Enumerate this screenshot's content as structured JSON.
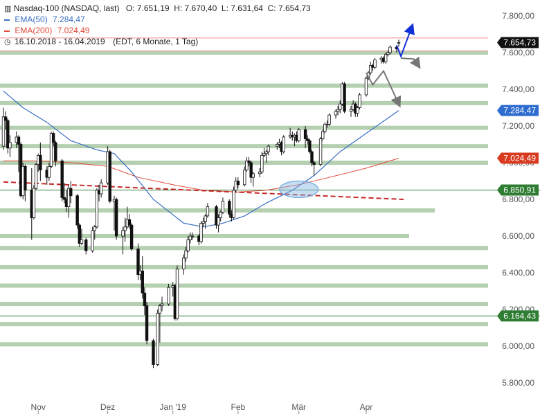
{
  "header": {
    "title": "Nasdaq-100 (NASDAQ, last)",
    "ohlc": "O: 7.651,19  H: 7.670,40  L: 7.631,64  C: 7.654,73",
    "ema50_label": "EMA(50)",
    "ema50_value": "7.284,47",
    "ema200_label": "EMA(200)",
    "ema200_value": "7.024,49",
    "range": "16.10.2018 - 16.04.2019",
    "range_info": "(EDT, 6 Monate, 1 Tag)"
  },
  "colors": {
    "ema50": "#3a6fc4",
    "ema200": "#e24b3b",
    "zone": "#b5cfb1",
    "price_badge": "#111111",
    "ema50_badge": "#2e6dcf",
    "ema200_badge": "#d93a1f",
    "level_badge": "#2f7d33",
    "dashed_trend": "#c62828",
    "blue_arrow": "#1230d8",
    "gray_arrow": "#777777",
    "ellipse": "#6aa6dd"
  },
  "chart_data": {
    "type": "candlestick",
    "title": "Nasdaq-100 (NASDAQ, last)",
    "xlabel": "",
    "ylabel": "",
    "ylim": [
      5750,
      7840
    ],
    "yticks": [
      "5.800,00",
      "6.000,00",
      "6.200,00",
      "6.400,00",
      "6.600,00",
      "6.800,00",
      "7.000,00",
      "7.200,00",
      "7.400,00",
      "7.600,00",
      "7.800,00"
    ],
    "ytick_values": [
      5800,
      6000,
      6200,
      6400,
      6600,
      6800,
      7000,
      7200,
      7400,
      7600,
      7800
    ],
    "xticks": [
      "Nov",
      "Dez",
      "Jan '19",
      "Feb",
      "Mär",
      "Apr"
    ],
    "xtick_dates": [
      "2018-11-01",
      "2018-12-03",
      "2019-01-02",
      "2019-02-01",
      "2019-03-01",
      "2019-04-01"
    ],
    "date_range": [
      "2018-10-16",
      "2019-04-16"
    ],
    "grid": false,
    "legend": "top-left",
    "candles": [
      [
        "2018-10-16",
        7090,
        7300,
        7070,
        7250
      ],
      [
        "2018-10-17",
        7250,
        7280,
        7180,
        7230
      ],
      [
        "2018-10-18",
        7230,
        7240,
        7050,
        7080
      ],
      [
        "2018-10-19",
        7080,
        7150,
        7030,
        7110
      ],
      [
        "2018-10-22",
        7110,
        7170,
        7080,
        7140
      ],
      [
        "2018-10-23",
        7140,
        7150,
        6950,
        7100
      ],
      [
        "2018-10-24",
        7100,
        7110,
        6810,
        6820
      ],
      [
        "2018-10-25",
        6820,
        7000,
        6800,
        6980
      ],
      [
        "2018-10-26",
        6980,
        6990,
        6790,
        6850
      ],
      [
        "2018-10-29",
        6850,
        6970,
        6580,
        6700
      ],
      [
        "2018-10-30",
        6700,
        6880,
        6690,
        6860
      ],
      [
        "2018-10-31",
        6860,
        7000,
        6850,
        6990
      ],
      [
        "2018-11-01",
        6990,
        7050,
        6950,
        7040
      ],
      [
        "2018-11-02",
        7040,
        7110,
        6900,
        6960
      ],
      [
        "2018-11-05",
        6960,
        6980,
        6880,
        6920
      ],
      [
        "2018-11-06",
        6920,
        7000,
        6900,
        6980
      ],
      [
        "2018-11-07",
        6980,
        7170,
        6970,
        7160
      ],
      [
        "2018-11-08",
        7160,
        7170,
        7090,
        7110
      ],
      [
        "2018-11-09",
        7110,
        7120,
        6980,
        7010
      ],
      [
        "2018-11-12",
        7010,
        7020,
        6790,
        6810
      ],
      [
        "2018-11-13",
        6810,
        6890,
        6780,
        6800
      ],
      [
        "2018-11-14",
        6800,
        6850,
        6730,
        6760
      ],
      [
        "2018-11-15",
        6760,
        6880,
        6700,
        6860
      ],
      [
        "2018-11-16",
        6860,
        6900,
        6780,
        6820
      ],
      [
        "2018-11-19",
        6820,
        6830,
        6640,
        6660
      ],
      [
        "2018-11-20",
        6660,
        6670,
        6540,
        6560
      ],
      [
        "2018-11-21",
        6560,
        6640,
        6550,
        6580
      ],
      [
        "2018-11-23",
        6580,
        6590,
        6500,
        6520
      ],
      [
        "2018-11-26",
        6520,
        6650,
        6510,
        6630
      ],
      [
        "2018-11-27",
        6630,
        6660,
        6580,
        6650
      ],
      [
        "2018-11-28",
        6650,
        6860,
        6640,
        6850
      ],
      [
        "2018-11-29",
        6850,
        6880,
        6790,
        6830
      ],
      [
        "2018-11-30",
        6830,
        6910,
        6810,
        6890
      ],
      [
        "2018-12-03",
        6890,
        7090,
        6880,
        7060
      ],
      [
        "2018-12-04",
        7060,
        7070,
        6780,
        6790
      ],
      [
        "2018-12-06",
        6790,
        6820,
        6630,
        6800
      ],
      [
        "2018-12-07",
        6800,
        6810,
        6580,
        6600
      ],
      [
        "2018-12-10",
        6600,
        6650,
        6500,
        6630
      ],
      [
        "2018-12-11",
        6630,
        6700,
        6570,
        6650
      ],
      [
        "2018-12-12",
        6650,
        6760,
        6640,
        6690
      ],
      [
        "2018-12-13",
        6690,
        6720,
        6640,
        6660
      ],
      [
        "2018-12-14",
        6660,
        6670,
        6520,
        6530
      ],
      [
        "2018-12-17",
        6530,
        6560,
        6360,
        6390
      ],
      [
        "2018-12-18",
        6390,
        6440,
        6360,
        6410
      ],
      [
        "2018-12-19",
        6410,
        6490,
        6260,
        6290
      ],
      [
        "2018-12-20",
        6290,
        6320,
        6170,
        6220
      ],
      [
        "2018-12-21",
        6220,
        6240,
        6010,
        6030
      ],
      [
        "2018-12-24",
        6030,
        6040,
        5880,
        5900
      ],
      [
        "2018-12-26",
        5900,
        6200,
        5890,
        6180
      ],
      [
        "2018-12-27",
        6180,
        6230,
        6020,
        6220
      ],
      [
        "2018-12-28",
        6220,
        6270,
        6190,
        6230
      ],
      [
        "2018-12-31",
        6230,
        6340,
        6220,
        6320
      ],
      [
        "2019-01-02",
        6320,
        6350,
        6270,
        6330
      ],
      [
        "2019-01-03",
        6330,
        6340,
        6140,
        6150
      ],
      [
        "2019-01-04",
        6150,
        6440,
        6140,
        6420
      ],
      [
        "2019-01-07",
        6420,
        6500,
        6390,
        6480
      ],
      [
        "2019-01-08",
        6480,
        6540,
        6460,
        6520
      ],
      [
        "2019-01-09",
        6520,
        6600,
        6510,
        6580
      ],
      [
        "2019-01-10",
        6580,
        6620,
        6560,
        6600
      ],
      [
        "2019-01-11",
        6600,
        6620,
        6580,
        6600
      ],
      [
        "2019-01-14",
        6600,
        6610,
        6550,
        6570
      ],
      [
        "2019-01-15",
        6570,
        6680,
        6560,
        6670
      ],
      [
        "2019-01-16",
        6670,
        6700,
        6650,
        6680
      ],
      [
        "2019-01-17",
        6680,
        6720,
        6640,
        6710
      ],
      [
        "2019-01-18",
        6710,
        6780,
        6700,
        6760
      ],
      [
        "2019-01-22",
        6760,
        6770,
        6640,
        6660
      ],
      [
        "2019-01-23",
        6660,
        6720,
        6620,
        6700
      ],
      [
        "2019-01-24",
        6700,
        6740,
        6680,
        6730
      ],
      [
        "2019-01-25",
        6730,
        6810,
        6720,
        6790
      ],
      [
        "2019-01-28",
        6790,
        6800,
        6700,
        6720
      ],
      [
        "2019-01-29",
        6720,
        6740,
        6680,
        6700
      ],
      [
        "2019-01-30",
        6700,
        6870,
        6690,
        6850
      ],
      [
        "2019-01-31",
        6850,
        6920,
        6840,
        6900
      ],
      [
        "2019-02-01",
        6900,
        6920,
        6860,
        6880
      ],
      [
        "2019-02-04",
        6880,
        6980,
        6870,
        6960
      ],
      [
        "2019-02-05",
        6960,
        7030,
        6950,
        7010
      ],
      [
        "2019-02-06",
        7010,
        7030,
        6980,
        7000
      ],
      [
        "2019-02-07",
        7000,
        7010,
        6890,
        6920
      ],
      [
        "2019-02-08",
        6920,
        6950,
        6870,
        6940
      ],
      [
        "2019-02-11",
        6940,
        6970,
        6920,
        6950
      ],
      [
        "2019-02-12",
        6950,
        7060,
        6940,
        7040
      ],
      [
        "2019-02-13",
        7040,
        7080,
        7030,
        7050
      ],
      [
        "2019-02-14",
        7050,
        7070,
        7000,
        7060
      ],
      [
        "2019-02-15",
        7060,
        7100,
        7040,
        7090
      ],
      [
        "2019-02-19",
        7090,
        7110,
        7070,
        7100
      ],
      [
        "2019-02-20",
        7100,
        7130,
        7080,
        7110
      ],
      [
        "2019-02-21",
        7110,
        7120,
        7040,
        7060
      ],
      [
        "2019-02-22",
        7060,
        7150,
        7050,
        7140
      ],
      [
        "2019-02-25",
        7140,
        7190,
        7130,
        7150
      ],
      [
        "2019-02-26",
        7150,
        7170,
        7120,
        7140
      ],
      [
        "2019-02-27",
        7140,
        7160,
        7090,
        7150
      ],
      [
        "2019-02-28",
        7150,
        7170,
        7110,
        7120
      ],
      [
        "2019-03-01",
        7120,
        7190,
        7110,
        7180
      ],
      [
        "2019-03-04",
        7180,
        7200,
        7080,
        7130
      ],
      [
        "2019-03-05",
        7130,
        7150,
        7100,
        7120
      ],
      [
        "2019-03-06",
        7120,
        7130,
        7050,
        7060
      ],
      [
        "2019-03-07",
        7060,
        7070,
        6980,
        7000
      ],
      [
        "2019-03-08",
        7000,
        7010,
        6930,
        6990
      ],
      [
        "2019-03-11",
        6990,
        7140,
        6980,
        7130
      ],
      [
        "2019-03-12",
        7130,
        7180,
        7120,
        7170
      ],
      [
        "2019-03-13",
        7170,
        7220,
        7160,
        7210
      ],
      [
        "2019-03-14",
        7210,
        7230,
        7190,
        7210
      ],
      [
        "2019-03-15",
        7210,
        7270,
        7200,
        7260
      ],
      [
        "2019-03-18",
        7260,
        7290,
        7240,
        7280
      ],
      [
        "2019-03-19",
        7280,
        7310,
        7260,
        7290
      ],
      [
        "2019-03-20",
        7290,
        7340,
        7270,
        7320
      ],
      [
        "2019-03-21",
        7320,
        7440,
        7310,
        7430
      ],
      [
        "2019-03-22",
        7430,
        7440,
        7270,
        7280
      ],
      [
        "2019-03-25",
        7280,
        7310,
        7250,
        7290
      ],
      [
        "2019-03-26",
        7290,
        7340,
        7280,
        7320
      ],
      [
        "2019-03-27",
        7320,
        7330,
        7250,
        7270
      ],
      [
        "2019-03-28",
        7270,
        7310,
        7250,
        7300
      ],
      [
        "2019-03-29",
        7300,
        7380,
        7290,
        7370
      ],
      [
        "2019-04-01",
        7370,
        7470,
        7360,
        7460
      ],
      [
        "2019-04-02",
        7460,
        7500,
        7450,
        7490
      ],
      [
        "2019-04-03",
        7490,
        7550,
        7480,
        7530
      ],
      [
        "2019-04-04",
        7530,
        7540,
        7500,
        7520
      ],
      [
        "2019-04-05",
        7520,
        7570,
        7510,
        7560
      ],
      [
        "2019-04-08",
        7560,
        7580,
        7540,
        7570
      ],
      [
        "2019-04-09",
        7570,
        7580,
        7540,
        7550
      ],
      [
        "2019-04-10",
        7550,
        7600,
        7540,
        7590
      ],
      [
        "2019-04-11",
        7590,
        7610,
        7580,
        7600
      ],
      [
        "2019-04-12",
        7600,
        7640,
        7590,
        7630
      ],
      [
        "2019-04-15",
        7630,
        7640,
        7600,
        7620
      ],
      [
        "2019-04-16",
        7651.19,
        7670.4,
        7631.64,
        7654.73
      ]
    ],
    "ema50": [
      [
        "2018-10-16",
        7390
      ],
      [
        "2018-10-25",
        7300
      ],
      [
        "2018-11-05",
        7220
      ],
      [
        "2018-11-16",
        7120
      ],
      [
        "2018-11-28",
        7070
      ],
      [
        "2018-12-06",
        7050
      ],
      [
        "2018-12-14",
        6950
      ],
      [
        "2018-12-24",
        6800
      ],
      [
        "2019-01-07",
        6670
      ],
      [
        "2019-01-16",
        6650
      ],
      [
        "2019-01-25",
        6670
      ],
      [
        "2019-02-04",
        6710
      ],
      [
        "2019-02-14",
        6780
      ],
      [
        "2019-02-26",
        6850
      ],
      [
        "2019-03-08",
        6930
      ],
      [
        "2019-03-20",
        7060
      ],
      [
        "2019-04-01",
        7160
      ],
      [
        "2019-04-16",
        7284.47
      ]
    ],
    "ema200": [
      [
        "2018-10-16",
        7010
      ],
      [
        "2018-11-01",
        7010
      ],
      [
        "2018-11-16",
        7000
      ],
      [
        "2018-12-03",
        6980
      ],
      [
        "2018-12-17",
        6920
      ],
      [
        "2019-01-02",
        6880
      ],
      [
        "2019-01-16",
        6850
      ],
      [
        "2019-02-01",
        6840
      ],
      [
        "2019-02-14",
        6850
      ],
      [
        "2019-03-01",
        6880
      ],
      [
        "2019-03-15",
        6920
      ],
      [
        "2019-04-01",
        6970
      ],
      [
        "2019-04-16",
        7024.49
      ]
    ],
    "support_zones": [
      {
        "value": 7600,
        "extent": "full"
      },
      {
        "value": 7420,
        "extent": "full"
      },
      {
        "value": 7325,
        "extent": "full"
      },
      {
        "value": 7190,
        "extent": "full"
      },
      {
        "value": 7090,
        "extent": "full"
      },
      {
        "value": 7000,
        "extent": "full"
      },
      {
        "value": 6740,
        "extent": "partial-long"
      },
      {
        "value": 6600,
        "extent": "partial"
      },
      {
        "value": 6535,
        "extent": "full"
      },
      {
        "value": 6430,
        "extent": "full"
      },
      {
        "value": 6330,
        "extent": "full"
      },
      {
        "value": 6230,
        "extent": "full"
      },
      {
        "value": 6120,
        "extent": "full"
      },
      {
        "value": 6010,
        "extent": "full"
      }
    ],
    "resistance_lines": [
      7680,
      7610
    ],
    "level_lines": [
      6850.91,
      6164.43
    ],
    "trend_line": [
      [
        "2018-10-16",
        6895
      ],
      [
        "2019-04-16",
        6800
      ]
    ],
    "price_badges": [
      {
        "text": "7.654,73",
        "value": 7654.73,
        "kind": "price"
      },
      {
        "text": "7.284,47",
        "value": 7284.47,
        "kind": "ema50"
      },
      {
        "text": "7.024,49",
        "value": 7024.49,
        "kind": "ema200"
      },
      {
        "text": "6.850,91",
        "value": 6850.91,
        "kind": "level"
      },
      {
        "text": "6.164,43",
        "value": 6164.43,
        "kind": "level"
      }
    ],
    "annotations": {
      "ellipse": {
        "date": "2019-03-01",
        "value": 6855
      },
      "blue_arrow": [
        [
          "2019-04-15",
          7640
        ],
        [
          "2019-04-17",
          7580
        ],
        [
          "2019-04-22",
          7740
        ]
      ],
      "gray_arrow_short": [
        [
          "2019-04-17",
          7570
        ],
        [
          "2019-04-23",
          7565
        ],
        [
          "2019-04-25",
          7530
        ]
      ],
      "gray_arrow_long": [
        [
          "2019-04-01",
          7490
        ],
        [
          "2019-04-04",
          7425
        ],
        [
          "2019-04-09",
          7500
        ],
        [
          "2019-04-16",
          7320
        ]
      ]
    }
  }
}
